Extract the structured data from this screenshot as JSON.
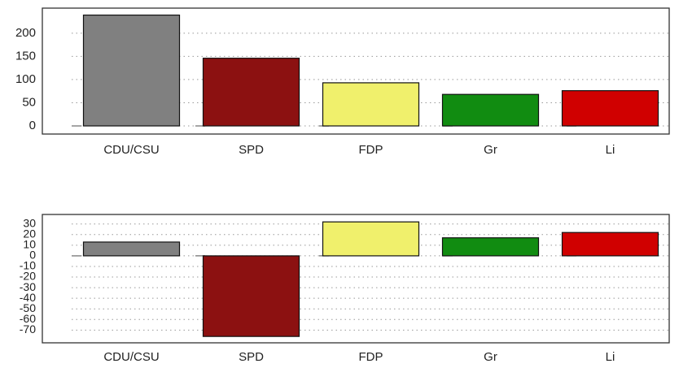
{
  "chart_data": [
    {
      "type": "bar",
      "categories": [
        "CDU/CSU",
        "SPD",
        "FDP",
        "Gr",
        "Li"
      ],
      "values": [
        239,
        146,
        93,
        68,
        76
      ],
      "colors": [
        "#808080",
        "#8c1111",
        "#f0f06c",
        "#118c11",
        "#d00000"
      ],
      "ylim": [
        -17.5,
        254
      ],
      "yticks": [
        0,
        50,
        100,
        150,
        200
      ],
      "grid": true
    },
    {
      "type": "bar",
      "categories": [
        "CDU/CSU",
        "SPD",
        "FDP",
        "Gr",
        "Li"
      ],
      "values": [
        13,
        -76,
        32,
        17,
        22
      ],
      "colors": [
        "#808080",
        "#8c1111",
        "#f0f06c",
        "#118c11",
        "#d00000"
      ],
      "ylim": [
        -82,
        39
      ],
      "yticks": [
        30,
        20,
        10,
        0,
        -10,
        -20,
        -30,
        -40,
        -50,
        -60,
        -70
      ],
      "grid": true
    }
  ]
}
